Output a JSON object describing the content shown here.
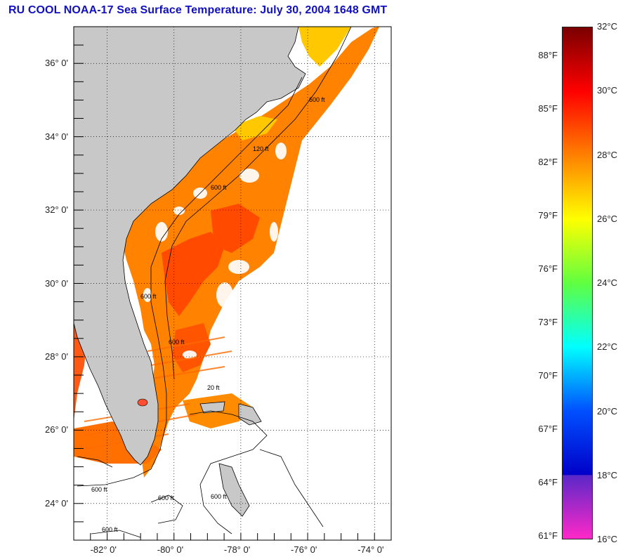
{
  "title": "RU COOL  NOAA-17  Sea Surface Temperature:  July 30, 2004 1648 GMT",
  "map": {
    "lat_labels": [
      "36° 0'",
      "34° 0'",
      "32° 0'",
      "30° 0'",
      "28° 0'",
      "26° 0'",
      "24° 0'"
    ],
    "lon_labels": [
      "-82° 0'",
      "-80° 0'",
      "-78° 0'",
      "-76° 0'",
      "-74° 0'"
    ],
    "lat_values": [
      36,
      34,
      32,
      30,
      28,
      26,
      24
    ],
    "lon_values": [
      -82,
      -80,
      -78,
      -76,
      -74
    ],
    "lat_range": [
      23.0,
      37.0
    ],
    "lon_range": [
      -83.0,
      -73.5
    ],
    "contour_labels": [
      "600 ft",
      "120 ft",
      "600 ft",
      "600 ft",
      "600 ft",
      "20 ft",
      "600 ft",
      "600 ft",
      "600 ft",
      "600 ft"
    ],
    "colors": {
      "land": "#c8c8c8",
      "ocean": "#ffffff",
      "warm": "#ff7800",
      "hot": "#ff3c00",
      "cool": "#ffa000",
      "grid": "#000000"
    }
  },
  "colorbar": {
    "celsius_labels": [
      "32°C",
      "30°C",
      "28°C",
      "26°C",
      "24°C",
      "22°C",
      "20°C",
      "18°C",
      "16°C"
    ],
    "fahrenheit_labels": [
      "88°F",
      "85°F",
      "82°F",
      "79°F",
      "76°F",
      "73°F",
      "70°F",
      "67°F",
      "64°F",
      "61°F"
    ],
    "celsius_values": [
      32,
      30,
      28,
      26,
      24,
      22,
      20,
      18,
      16
    ],
    "fahrenheit_values": [
      88,
      85,
      82,
      79,
      76,
      73,
      70,
      67,
      64,
      61
    ],
    "range_c": [
      16,
      32
    ]
  }
}
